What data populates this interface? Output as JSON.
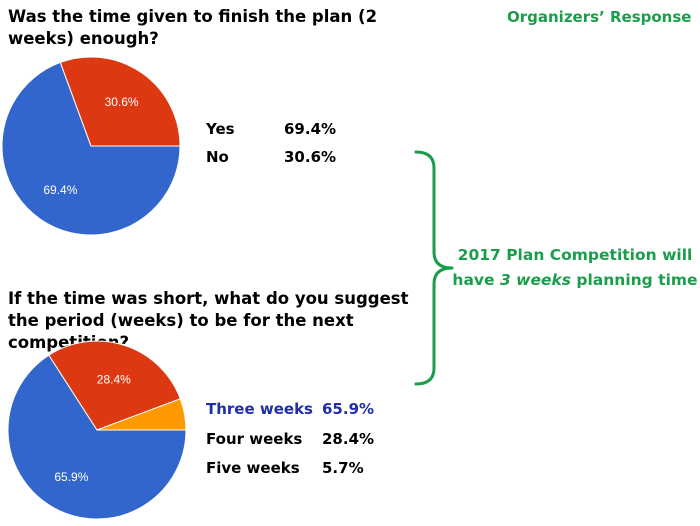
{
  "organizers": {
    "title": "Organizers’ Response",
    "note_line1": "2017 Plan Competition will",
    "note_line2_pre": "have ",
    "note_line2_em": "3 weeks",
    "note_line2_post": " planning time"
  },
  "colors": {
    "green": "#1a9e4b",
    "blue": "#3366cc",
    "red": "#dc3912",
    "orange": "#ff9900",
    "highlight": "#1f2dae"
  },
  "chart_data": [
    {
      "type": "pie",
      "title": "Was the time given to finish the plan (2 weeks) enough?",
      "categories": [
        "Yes",
        "No"
      ],
      "values": [
        69.4,
        30.6
      ],
      "value_labels": [
        "69.4%",
        "30.6%"
      ],
      "colors": [
        "#3366cc",
        "#dc3912"
      ]
    },
    {
      "type": "pie",
      "title": "If the time was short, what do you suggest the period (weeks) to be for the next competition?",
      "categories": [
        "Three weeks",
        "Four weeks",
        "Five weeks"
      ],
      "values": [
        65.9,
        28.4,
        5.7
      ],
      "value_labels": [
        "65.9%",
        "28.4%",
        "5.7%"
      ],
      "colors": [
        "#3366cc",
        "#dc3912",
        "#ff9900"
      ],
      "highlighted": "Three weeks"
    }
  ]
}
